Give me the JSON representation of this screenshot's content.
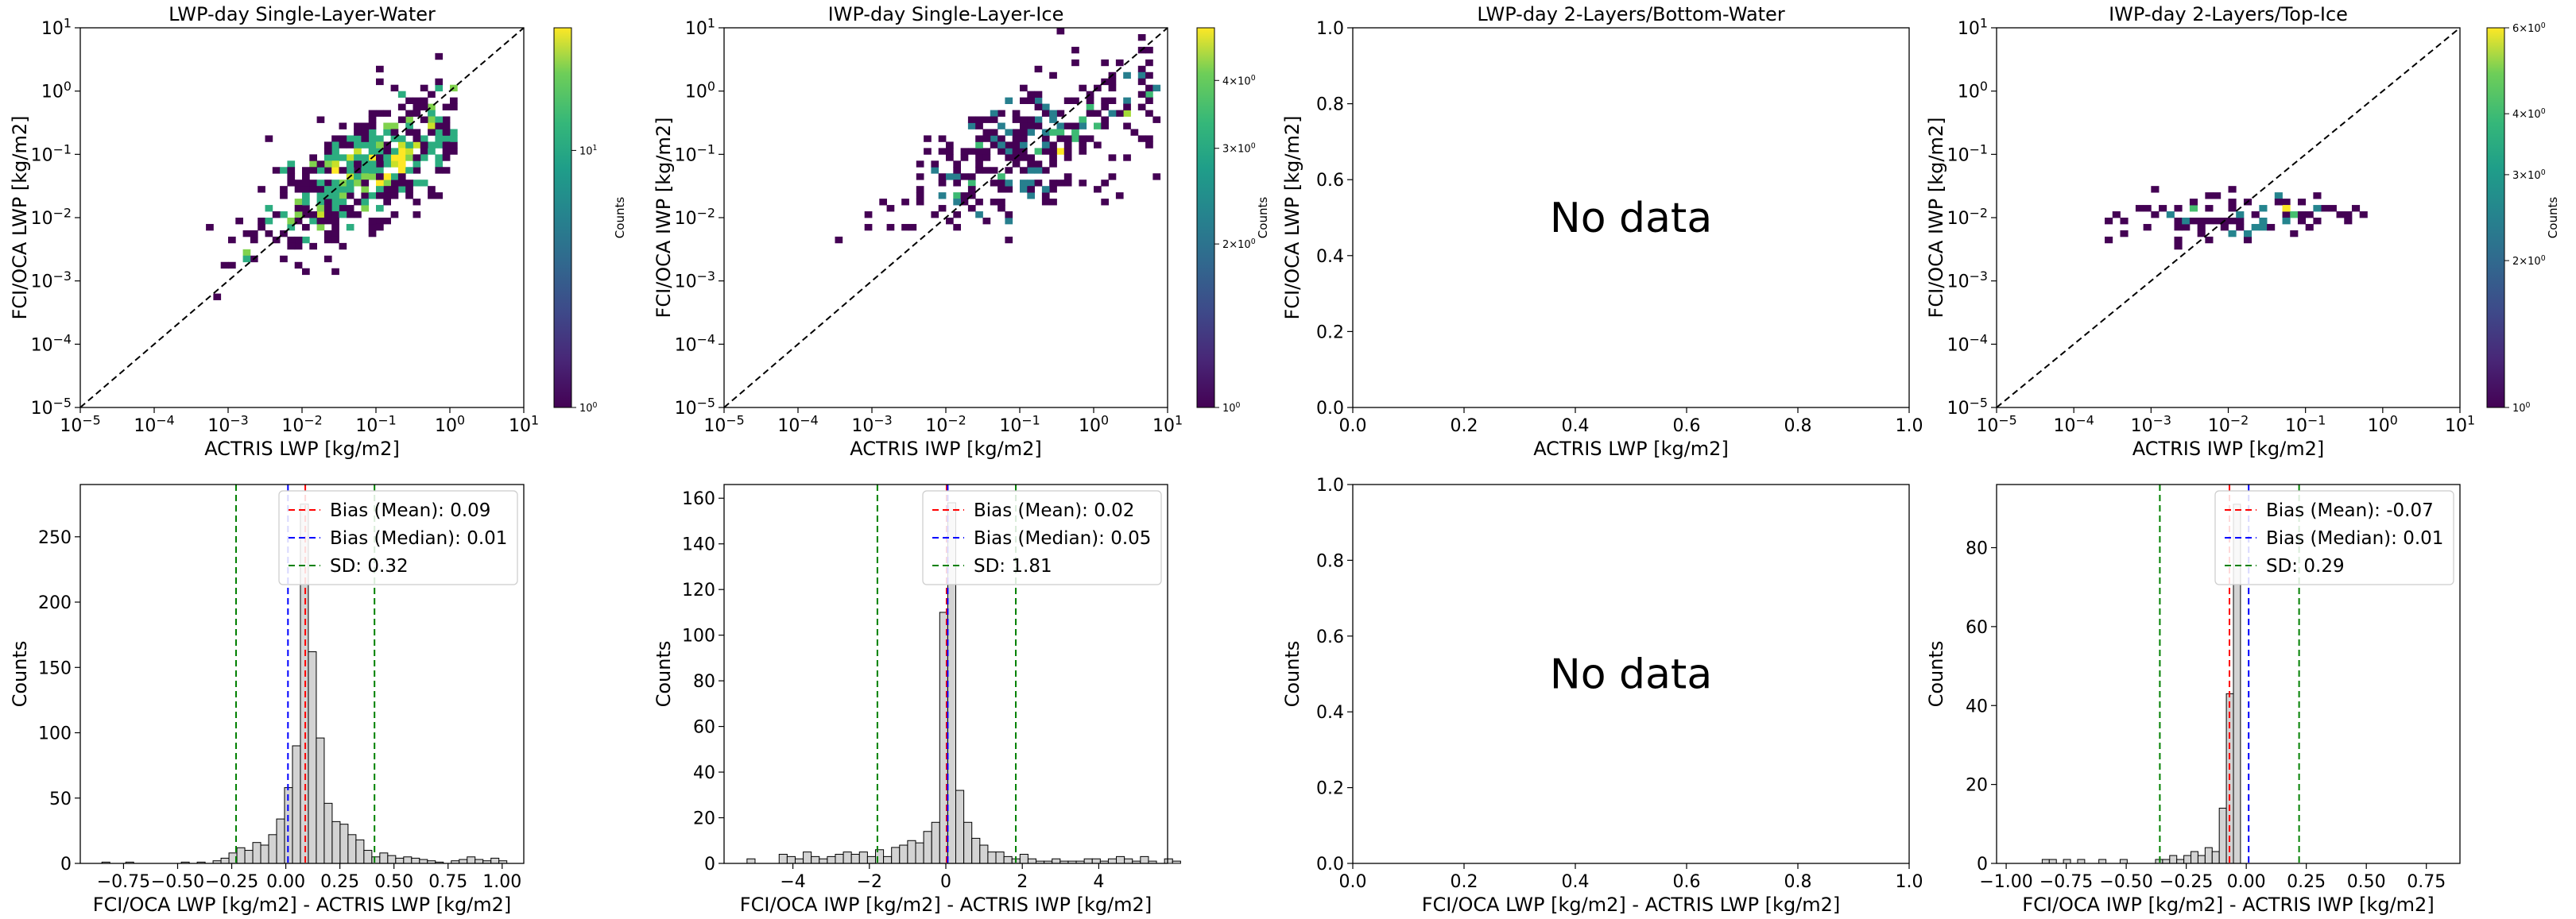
{
  "chart_data": [
    {
      "type": "heatmap",
      "panel": "a1",
      "title": "LWP-day Single-Layer-Water",
      "xlabel": "ACTRIS LWP [kg/m2]",
      "ylabel": "FCI/OCA LWP [kg/m2]",
      "xscale": "log",
      "yscale": "log",
      "xlim": [
        1e-05,
        10
      ],
      "ylim": [
        1e-05,
        10
      ],
      "xticklabels": [
        "10^-5",
        "10^-4",
        "10^-3",
        "10^-2",
        "10^-1",
        "10^0",
        "10^1"
      ],
      "yticklabels": [
        "10^-5",
        "10^-4",
        "10^-3",
        "10^-2",
        "10^-1",
        "10^0",
        "10^1"
      ],
      "reference_line": "1:1",
      "colorbar": {
        "label": "Counts",
        "scale": "log",
        "range": [
          1,
          30
        ],
        "ticklabels": [
          "10^0",
          "10^1"
        ]
      },
      "cloud": {
        "cx": -1.1,
        "cy": -1.2,
        "sx": 0.75,
        "sy": 0.65,
        "corr": 0.72,
        "n": 520,
        "xmin": -4.5,
        "xmax": 0.1,
        "ymin": -3.3,
        "ymax": 0.9,
        "peak": 30
      }
    },
    {
      "type": "heatmap",
      "panel": "b1",
      "title": "IWP-day Single-Layer-Ice",
      "xlabel": "ACTRIS IWP [kg/m2]",
      "ylabel": "FCI/OCA IWP [kg/m2]",
      "xscale": "log",
      "yscale": "log",
      "xlim": [
        1e-05,
        10
      ],
      "ylim": [
        1e-05,
        10
      ],
      "xticklabels": [
        "10^-5",
        "10^-4",
        "10^-3",
        "10^-2",
        "10^-1",
        "10^0",
        "10^1"
      ],
      "yticklabels": [
        "10^-5",
        "10^-4",
        "10^-3",
        "10^-2",
        "10^-1",
        "10^0",
        "10^1"
      ],
      "reference_line": "1:1",
      "colorbar": {
        "label": "Counts",
        "scale": "log",
        "range": [
          1,
          5
        ],
        "ticklabels": [
          "10^0",
          "2×10^0",
          "3×10^0",
          "4×10^0"
        ]
      },
      "cloud": {
        "cx": -0.9,
        "cy": -0.9,
        "sx": 0.95,
        "sy": 0.65,
        "corr": 0.65,
        "n": 330,
        "xmin": -5.0,
        "xmax": 1.0,
        "ymin": -2.4,
        "ymax": 1.0,
        "peak": 5
      }
    },
    {
      "type": "heatmap",
      "panel": "c1",
      "title": "LWP-day 2-Layers/Bottom-Water",
      "xlabel": "ACTRIS LWP [kg/m2]",
      "ylabel": "FCI/OCA LWP [kg/m2]",
      "xlim": [
        0,
        1
      ],
      "ylim": [
        0,
        1
      ],
      "xticks": [
        0.0,
        0.2,
        0.4,
        0.6,
        0.8,
        1.0
      ],
      "yticks": [
        0.0,
        0.2,
        0.4,
        0.6,
        0.8,
        1.0
      ],
      "annotation": "No data"
    },
    {
      "type": "heatmap",
      "panel": "d1",
      "title": "IWP-day 2-Layers/Top-Ice",
      "xlabel": "ACTRIS IWP [kg/m2]",
      "ylabel": "FCI/OCA IWP [kg/m2]",
      "xscale": "log",
      "yscale": "log",
      "xlim": [
        1e-05,
        10
      ],
      "ylim": [
        1e-05,
        10
      ],
      "xticklabels": [
        "10^-5",
        "10^-4",
        "10^-3",
        "10^-2",
        "10^-1",
        "10^0",
        "10^1"
      ],
      "yticklabels": [
        "10^-5",
        "10^-4",
        "10^-3",
        "10^-2",
        "10^-1",
        "10^0",
        "10^1"
      ],
      "reference_line": "1:1",
      "colorbar": {
        "label": "Counts",
        "scale": "log",
        "range": [
          1,
          6
        ],
        "ticklabels": [
          "10^0",
          "2×10^0",
          "3×10^0",
          "4×10^0",
          "6×10^0"
        ]
      },
      "cloud": {
        "cx": -1.9,
        "cy": -2.0,
        "sx": 0.9,
        "sy": 0.2,
        "corr": 0.3,
        "n": 95,
        "xmin": -4.1,
        "xmax": 0.3,
        "ymin": -2.6,
        "ymax": -1.0,
        "peak": 6
      }
    },
    {
      "type": "bar",
      "panel": "a2",
      "xlabel": "FCI/OCA LWP [kg/m2] - ACTRIS LWP [kg/m2]",
      "ylabel": "Counts",
      "xlim": [
        -0.95,
        1.1
      ],
      "ylim": [
        0,
        290
      ],
      "xticks": [
        -0.75,
        -0.5,
        -0.25,
        0.0,
        0.25,
        0.5,
        0.75,
        1.0
      ],
      "xticklabels": [
        "−0.75",
        "−0.50",
        "−0.25",
        "0.00",
        "0.25",
        "0.50",
        "0.75",
        "1.00"
      ],
      "yticks": [
        0,
        50,
        100,
        150,
        200,
        250
      ],
      "bin_start": -0.85,
      "bin_width": 0.0367,
      "values": [
        1,
        0,
        0,
        1,
        0,
        0,
        0,
        0,
        0,
        0,
        1,
        0,
        1,
        0,
        2,
        4,
        8,
        12,
        10,
        16,
        14,
        22,
        34,
        58,
        90,
        275,
        162,
        96,
        46,
        32,
        30,
        22,
        18,
        10,
        5,
        8,
        6,
        4,
        5,
        4,
        3,
        2,
        1,
        0,
        2,
        3,
        5,
        3,
        2,
        4,
        2
      ],
      "lines": {
        "mean": 0.09,
        "median": 0.01,
        "sd_low": -0.23,
        "sd_high": 0.41
      },
      "legend": [
        "Bias (Mean): 0.09",
        "Bias (Median): 0.01",
        "SD: 0.32"
      ],
      "legend_colors": [
        "#ff0000",
        "#0000ff",
        "#008000"
      ]
    },
    {
      "type": "bar",
      "panel": "b2",
      "xlabel": "FCI/OCA IWP [kg/m2] - ACTRIS IWP [kg/m2]",
      "ylabel": "Counts",
      "xlim": [
        -5.8,
        5.8
      ],
      "ylim": [
        0,
        166
      ],
      "xticks": [
        -4,
        -2,
        0,
        2,
        4
      ],
      "xticklabels": [
        "−4",
        "−2",
        "0",
        "2",
        "4"
      ],
      "yticks": [
        0,
        20,
        40,
        60,
        80,
        100,
        120,
        140,
        160
      ],
      "bin_start": -5.2,
      "bin_width": 0.21,
      "values": [
        2,
        0,
        0,
        0,
        4,
        3,
        2,
        5,
        3,
        2,
        3,
        4,
        5,
        4,
        5,
        3,
        6,
        3,
        7,
        8,
        10,
        9,
        14,
        18,
        110,
        158,
        32,
        18,
        11,
        8,
        5,
        5,
        3,
        2,
        4,
        2,
        1,
        1,
        2,
        1,
        1,
        1,
        2,
        2,
        1,
        2,
        3,
        2,
        1,
        3,
        1,
        0,
        2,
        1
      ],
      "lines": {
        "mean": 0.02,
        "median": 0.05,
        "sd_low": -1.79,
        "sd_high": 1.83
      },
      "legend": [
        "Bias (Mean): 0.02",
        "Bias (Median): 0.05",
        "SD: 1.81"
      ],
      "legend_colors": [
        "#ff0000",
        "#0000ff",
        "#008000"
      ]
    },
    {
      "type": "bar",
      "panel": "c2",
      "xlabel": "FCI/OCA LWP [kg/m2] - ACTRIS LWP [kg/m2]",
      "ylabel": "Counts",
      "xlim": [
        0,
        1
      ],
      "ylim": [
        0,
        1
      ],
      "xticks": [
        0.0,
        0.2,
        0.4,
        0.6,
        0.8,
        1.0
      ],
      "yticks": [
        0.0,
        0.2,
        0.4,
        0.6,
        0.8,
        1.0
      ],
      "annotation": "No data"
    },
    {
      "type": "bar",
      "panel": "d2",
      "xlabel": "FCI/OCA IWP [kg/m2] - ACTRIS IWP [kg/m2]",
      "ylabel": "Counts",
      "xlim": [
        -1.04,
        0.89
      ],
      "ylim": [
        0,
        96
      ],
      "xticks": [
        -1.0,
        -0.75,
        -0.5,
        -0.25,
        0.0,
        0.25,
        0.5,
        0.75
      ],
      "xticklabels": [
        "−1.00",
        "−0.75",
        "−0.50",
        "−0.25",
        "0.00",
        "0.25",
        "0.50",
        "0.75"
      ],
      "yticks": [
        0,
        20,
        40,
        60,
        80
      ],
      "bin_start": -0.85,
      "bin_width": 0.0295,
      "values": [
        1,
        1,
        0,
        1,
        0,
        1,
        0,
        0,
        1,
        0,
        0,
        1,
        0,
        0,
        0,
        0,
        1,
        1,
        2,
        1,
        2,
        3,
        2,
        4,
        3,
        14,
        43,
        91
      ],
      "lines": {
        "mean": -0.07,
        "median": 0.01,
        "sd_low": -0.36,
        "sd_high": 0.22
      },
      "legend": [
        "Bias (Mean): -0.07",
        "Bias (Median): 0.01",
        "SD: 0.29"
      ],
      "legend_colors": [
        "#ff0000",
        "#0000ff",
        "#008000"
      ]
    }
  ]
}
